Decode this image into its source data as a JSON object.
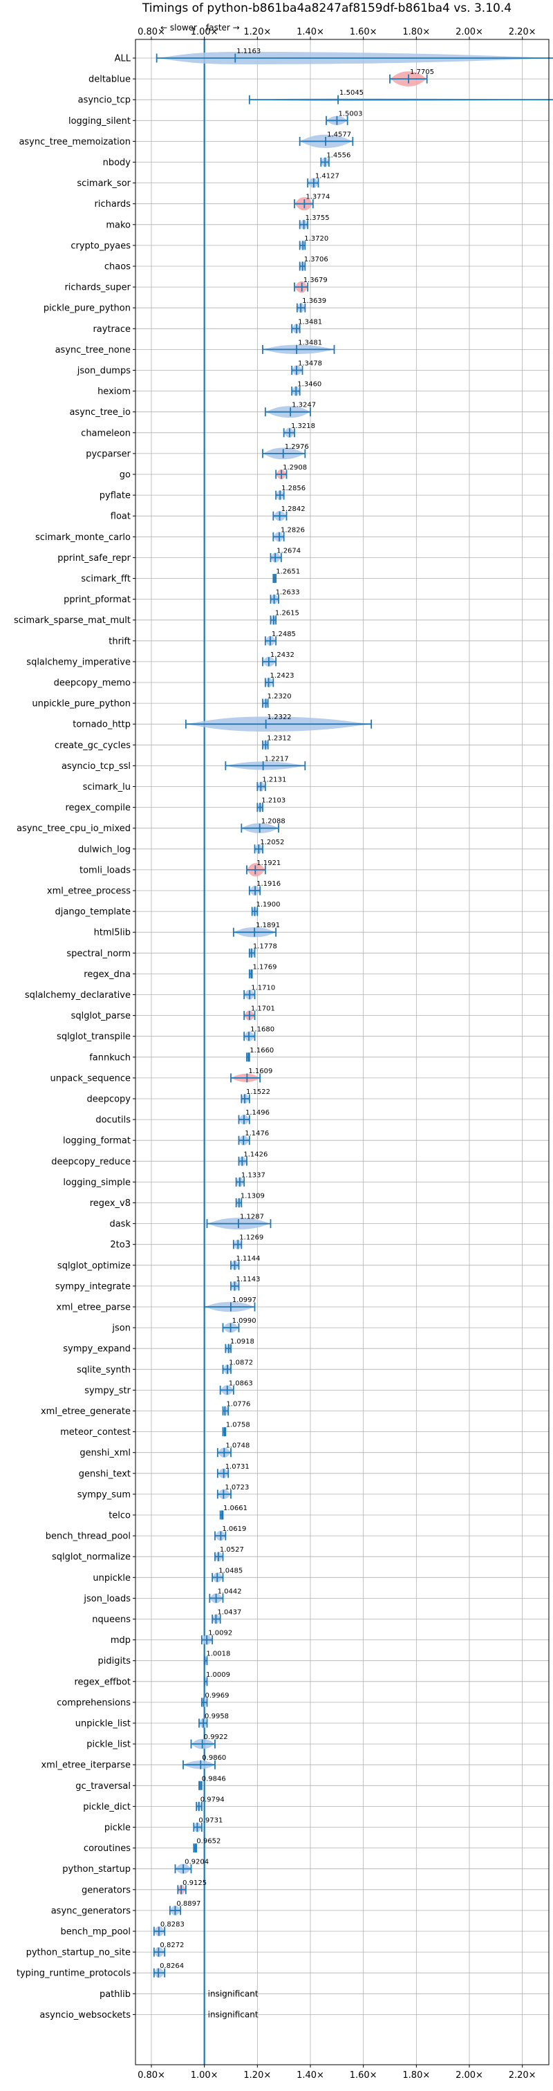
{
  "chart_data": {
    "type": "violin",
    "title": "Timings of python-b861ba4a8247af8159df-b861ba4 vs. 3.10.4",
    "direction_labels": {
      "slower": "← slower",
      "faster": "faster →"
    },
    "x_axis": {
      "ticks": [
        0.8,
        1.0,
        1.2,
        1.4,
        1.6,
        1.8,
        2.0,
        2.2
      ],
      "tick_labels": [
        "0.80×",
        "1.00×",
        "1.20×",
        "1.40×",
        "1.60×",
        "1.80×",
        "2.00×",
        "2.20×"
      ],
      "xlim": [
        0.74,
        2.3
      ],
      "reference_line": 1.0
    },
    "grid": true,
    "colors": {
      "violin": "#a9c6e8",
      "violin_edge": "#1f77b4",
      "error_bar": "#1f77b4",
      "significant": "#f4a3a8",
      "reference": "#1f77b4"
    },
    "benchmarks": [
      {
        "name": "ALL",
        "value": 1.1163,
        "label": "1.1163",
        "lo": 0.82,
        "hi": 2.34,
        "w": 0.75,
        "color": "blue"
      },
      {
        "name": "deltablue",
        "value": 1.7705,
        "label": "1.7705",
        "lo": 1.7,
        "hi": 1.84,
        "w": 0.9,
        "color": "red"
      },
      {
        "name": "asyncio_tcp",
        "value": 1.5045,
        "label": "1.5045",
        "lo": 1.17,
        "hi": 2.34,
        "w": 0.15,
        "color": "blue"
      },
      {
        "name": "logging_silent",
        "value": 1.5003,
        "label": "1.5003",
        "lo": 1.46,
        "hi": 1.54,
        "w": 0.55,
        "color": "blue"
      },
      {
        "name": "async_tree_memoization",
        "value": 1.4577,
        "label": "1.4577",
        "lo": 1.36,
        "hi": 1.56,
        "w": 0.8,
        "color": "blue"
      },
      {
        "name": "nbody",
        "value": 1.4556,
        "label": "1.4556",
        "lo": 1.44,
        "hi": 1.47,
        "w": 0.6,
        "color": "blue"
      },
      {
        "name": "scimark_sor",
        "value": 1.4127,
        "label": "1.4127",
        "lo": 1.39,
        "hi": 1.43,
        "w": 0.6,
        "color": "blue"
      },
      {
        "name": "richards",
        "value": 1.3774,
        "label": "1.3774",
        "lo": 1.34,
        "hi": 1.41,
        "w": 0.8,
        "color": "red"
      },
      {
        "name": "mako",
        "value": 1.3755,
        "label": "1.3755",
        "lo": 1.36,
        "hi": 1.39,
        "w": 0.6,
        "color": "blue"
      },
      {
        "name": "crypto_pyaes",
        "value": 1.372,
        "label": "1.3720",
        "lo": 1.36,
        "hi": 1.38,
        "w": 0.6,
        "color": "blue"
      },
      {
        "name": "chaos",
        "value": 1.3706,
        "label": "1.3706",
        "lo": 1.36,
        "hi": 1.38,
        "w": 0.6,
        "color": "blue"
      },
      {
        "name": "richards_super",
        "value": 1.3679,
        "label": "1.3679",
        "lo": 1.34,
        "hi": 1.39,
        "w": 0.7,
        "color": "red"
      },
      {
        "name": "pickle_pure_python",
        "value": 1.3639,
        "label": "1.3639",
        "lo": 1.35,
        "hi": 1.38,
        "w": 0.6,
        "color": "blue"
      },
      {
        "name": "raytrace",
        "value": 1.3481,
        "label": "1.3481",
        "lo": 1.33,
        "hi": 1.36,
        "w": 0.6,
        "color": "blue"
      },
      {
        "name": "async_tree_none",
        "value": 1.3481,
        "label": "1.3481",
        "lo": 1.22,
        "hi": 1.49,
        "w": 0.55,
        "color": "blue"
      },
      {
        "name": "json_dumps",
        "value": 1.3478,
        "label": "1.3478",
        "lo": 1.33,
        "hi": 1.37,
        "w": 0.6,
        "color": "blue"
      },
      {
        "name": "hexiom",
        "value": 1.346,
        "label": "1.3460",
        "lo": 1.33,
        "hi": 1.36,
        "w": 0.6,
        "color": "blue"
      },
      {
        "name": "async_tree_io",
        "value": 1.3247,
        "label": "1.3247",
        "lo": 1.23,
        "hi": 1.4,
        "w": 0.7,
        "color": "blue"
      },
      {
        "name": "chameleon",
        "value": 1.3218,
        "label": "1.3218",
        "lo": 1.3,
        "hi": 1.34,
        "w": 0.6,
        "color": "blue"
      },
      {
        "name": "pycparser",
        "value": 1.2976,
        "label": "1.2976",
        "lo": 1.22,
        "hi": 1.38,
        "w": 0.7,
        "color": "blue"
      },
      {
        "name": "go",
        "value": 1.2908,
        "label": "1.2908",
        "lo": 1.27,
        "hi": 1.31,
        "w": 0.6,
        "color": "red"
      },
      {
        "name": "pyflate",
        "value": 1.2856,
        "label": "1.2856",
        "lo": 1.27,
        "hi": 1.3,
        "w": 0.6,
        "color": "blue"
      },
      {
        "name": "float",
        "value": 1.2842,
        "label": "1.2842",
        "lo": 1.26,
        "hi": 1.31,
        "w": 0.6,
        "color": "blue"
      },
      {
        "name": "scimark_monte_carlo",
        "value": 1.2826,
        "label": "1.2826",
        "lo": 1.26,
        "hi": 1.3,
        "w": 0.6,
        "color": "blue"
      },
      {
        "name": "pprint_safe_repr",
        "value": 1.2674,
        "label": "1.2674",
        "lo": 1.25,
        "hi": 1.29,
        "w": 0.6,
        "color": "blue"
      },
      {
        "name": "scimark_fft",
        "value": 1.2651,
        "label": "1.2651",
        "lo": 1.26,
        "hi": 1.27,
        "w": 0.6,
        "color": "blue"
      },
      {
        "name": "pprint_pformat",
        "value": 1.2633,
        "label": "1.2633",
        "lo": 1.25,
        "hi": 1.28,
        "w": 0.6,
        "color": "blue"
      },
      {
        "name": "scimark_sparse_mat_mult",
        "value": 1.2615,
        "label": "1.2615",
        "lo": 1.25,
        "hi": 1.27,
        "w": 0.6,
        "color": "blue"
      },
      {
        "name": "thrift",
        "value": 1.2485,
        "label": "1.2485",
        "lo": 1.23,
        "hi": 1.27,
        "w": 0.6,
        "color": "blue"
      },
      {
        "name": "sqlalchemy_imperative",
        "value": 1.2432,
        "label": "1.2432",
        "lo": 1.22,
        "hi": 1.27,
        "w": 0.6,
        "color": "blue"
      },
      {
        "name": "deepcopy_memo",
        "value": 1.2423,
        "label": "1.2423",
        "lo": 1.23,
        "hi": 1.26,
        "w": 0.6,
        "color": "blue"
      },
      {
        "name": "unpickle_pure_python",
        "value": 1.232,
        "label": "1.2320",
        "lo": 1.22,
        "hi": 1.24,
        "w": 0.6,
        "color": "blue"
      },
      {
        "name": "tornado_http",
        "value": 1.2322,
        "label": "1.2322",
        "lo": 0.93,
        "hi": 1.63,
        "w": 0.9,
        "color": "blue"
      },
      {
        "name": "create_gc_cycles",
        "value": 1.2312,
        "label": "1.2312",
        "lo": 1.22,
        "hi": 1.24,
        "w": 0.6,
        "color": "blue"
      },
      {
        "name": "asyncio_tcp_ssl",
        "value": 1.2217,
        "label": "1.2217",
        "lo": 1.08,
        "hi": 1.38,
        "w": 0.5,
        "color": "blue"
      },
      {
        "name": "scimark_lu",
        "value": 1.2131,
        "label": "1.2131",
        "lo": 1.2,
        "hi": 1.23,
        "w": 0.6,
        "color": "blue"
      },
      {
        "name": "regex_compile",
        "value": 1.2103,
        "label": "1.2103",
        "lo": 1.2,
        "hi": 1.22,
        "w": 0.6,
        "color": "blue"
      },
      {
        "name": "async_tree_cpu_io_mixed",
        "value": 1.2088,
        "label": "1.2088",
        "lo": 1.14,
        "hi": 1.28,
        "w": 0.6,
        "color": "blue"
      },
      {
        "name": "dulwich_log",
        "value": 1.2052,
        "label": "1.2052",
        "lo": 1.19,
        "hi": 1.22,
        "w": 0.6,
        "color": "blue"
      },
      {
        "name": "tomli_loads",
        "value": 1.1921,
        "label": "1.1921",
        "lo": 1.16,
        "hi": 1.23,
        "w": 0.8,
        "color": "red"
      },
      {
        "name": "xml_etree_process",
        "value": 1.1916,
        "label": "1.1916",
        "lo": 1.17,
        "hi": 1.21,
        "w": 0.6,
        "color": "blue"
      },
      {
        "name": "django_template",
        "value": 1.19,
        "label": "1.1900",
        "lo": 1.18,
        "hi": 1.2,
        "w": 0.6,
        "color": "blue"
      },
      {
        "name": "html5lib",
        "value": 1.1891,
        "label": "1.1891",
        "lo": 1.11,
        "hi": 1.27,
        "w": 0.6,
        "color": "blue"
      },
      {
        "name": "spectral_norm",
        "value": 1.1778,
        "label": "1.1778",
        "lo": 1.17,
        "hi": 1.19,
        "w": 0.6,
        "color": "blue"
      },
      {
        "name": "regex_dna",
        "value": 1.1769,
        "label": "1.1769",
        "lo": 1.17,
        "hi": 1.18,
        "w": 0.6,
        "color": "blue"
      },
      {
        "name": "sqlalchemy_declarative",
        "value": 1.171,
        "label": "1.1710",
        "lo": 1.15,
        "hi": 1.19,
        "w": 0.6,
        "color": "blue"
      },
      {
        "name": "sqlglot_parse",
        "value": 1.1701,
        "label": "1.1701",
        "lo": 1.15,
        "hi": 1.19,
        "w": 0.6,
        "color": "red"
      },
      {
        "name": "sqlglot_transpile",
        "value": 1.168,
        "label": "1.1680",
        "lo": 1.15,
        "hi": 1.19,
        "w": 0.6,
        "color": "blue"
      },
      {
        "name": "fannkuch",
        "value": 1.166,
        "label": "1.1660",
        "lo": 1.16,
        "hi": 1.17,
        "w": 0.6,
        "color": "blue"
      },
      {
        "name": "unpack_sequence",
        "value": 1.1609,
        "label": "1.1609",
        "lo": 1.1,
        "hi": 1.21,
        "w": 0.5,
        "color": "red"
      },
      {
        "name": "deepcopy",
        "value": 1.1522,
        "label": "1.1522",
        "lo": 1.14,
        "hi": 1.17,
        "w": 0.6,
        "color": "blue"
      },
      {
        "name": "docutils",
        "value": 1.1496,
        "label": "1.1496",
        "lo": 1.13,
        "hi": 1.17,
        "w": 0.6,
        "color": "blue"
      },
      {
        "name": "logging_format",
        "value": 1.1476,
        "label": "1.1476",
        "lo": 1.13,
        "hi": 1.17,
        "w": 0.6,
        "color": "blue"
      },
      {
        "name": "deepcopy_reduce",
        "value": 1.1426,
        "label": "1.1426",
        "lo": 1.13,
        "hi": 1.16,
        "w": 0.6,
        "color": "blue"
      },
      {
        "name": "logging_simple",
        "value": 1.1337,
        "label": "1.1337",
        "lo": 1.12,
        "hi": 1.15,
        "w": 0.6,
        "color": "blue"
      },
      {
        "name": "regex_v8",
        "value": 1.1309,
        "label": "1.1309",
        "lo": 1.12,
        "hi": 1.14,
        "w": 0.6,
        "color": "blue"
      },
      {
        "name": "dask",
        "value": 1.1287,
        "label": "1.1287",
        "lo": 1.01,
        "hi": 1.25,
        "w": 0.7,
        "color": "blue"
      },
      {
        "name": "2to3",
        "value": 1.1269,
        "label": "1.1269",
        "lo": 1.11,
        "hi": 1.14,
        "w": 0.6,
        "color": "blue"
      },
      {
        "name": "sqlglot_optimize",
        "value": 1.1144,
        "label": "1.1144",
        "lo": 1.1,
        "hi": 1.13,
        "w": 0.6,
        "color": "blue"
      },
      {
        "name": "sympy_integrate",
        "value": 1.1143,
        "label": "1.1143",
        "lo": 1.1,
        "hi": 1.13,
        "w": 0.6,
        "color": "blue"
      },
      {
        "name": "xml_etree_parse",
        "value": 1.0997,
        "label": "1.0997",
        "lo": 1.0,
        "hi": 1.19,
        "w": 0.6,
        "color": "blue"
      },
      {
        "name": "json",
        "value": 1.099,
        "label": "1.0990",
        "lo": 1.07,
        "hi": 1.13,
        "w": 0.6,
        "color": "blue"
      },
      {
        "name": "sympy_expand",
        "value": 1.0918,
        "label": "1.0918",
        "lo": 1.08,
        "hi": 1.1,
        "w": 0.6,
        "color": "blue"
      },
      {
        "name": "sqlite_synth",
        "value": 1.0872,
        "label": "1.0872",
        "lo": 1.07,
        "hi": 1.1,
        "w": 0.6,
        "color": "blue"
      },
      {
        "name": "sympy_str",
        "value": 1.0863,
        "label": "1.0863",
        "lo": 1.06,
        "hi": 1.11,
        "w": 0.6,
        "color": "blue"
      },
      {
        "name": "xml_etree_generate",
        "value": 1.0776,
        "label": "1.0776",
        "lo": 1.07,
        "hi": 1.09,
        "w": 0.6,
        "color": "blue"
      },
      {
        "name": "meteor_contest",
        "value": 1.0758,
        "label": "1.0758",
        "lo": 1.07,
        "hi": 1.08,
        "w": 0.6,
        "color": "blue"
      },
      {
        "name": "genshi_xml",
        "value": 1.0748,
        "label": "1.0748",
        "lo": 1.05,
        "hi": 1.1,
        "w": 0.6,
        "color": "blue"
      },
      {
        "name": "genshi_text",
        "value": 1.0731,
        "label": "1.0731",
        "lo": 1.05,
        "hi": 1.09,
        "w": 0.6,
        "color": "blue"
      },
      {
        "name": "sympy_sum",
        "value": 1.0723,
        "label": "1.0723",
        "lo": 1.05,
        "hi": 1.1,
        "w": 0.6,
        "color": "blue"
      },
      {
        "name": "telco",
        "value": 1.0661,
        "label": "1.0661",
        "lo": 1.06,
        "hi": 1.07,
        "w": 0.6,
        "color": "blue"
      },
      {
        "name": "bench_thread_pool",
        "value": 1.0619,
        "label": "1.0619",
        "lo": 1.04,
        "hi": 1.08,
        "w": 0.6,
        "color": "blue"
      },
      {
        "name": "sqlglot_normalize",
        "value": 1.0527,
        "label": "1.0527",
        "lo": 1.04,
        "hi": 1.07,
        "w": 0.6,
        "color": "blue"
      },
      {
        "name": "unpickle",
        "value": 1.0485,
        "label": "1.0485",
        "lo": 1.03,
        "hi": 1.07,
        "w": 0.6,
        "color": "blue"
      },
      {
        "name": "json_loads",
        "value": 1.0442,
        "label": "1.0442",
        "lo": 1.02,
        "hi": 1.07,
        "w": 0.6,
        "color": "blue"
      },
      {
        "name": "nqueens",
        "value": 1.0437,
        "label": "1.0437",
        "lo": 1.03,
        "hi": 1.06,
        "w": 0.6,
        "color": "blue"
      },
      {
        "name": "mdp",
        "value": 1.0092,
        "label": "1.0092",
        "lo": 0.99,
        "hi": 1.03,
        "w": 0.6,
        "color": "blue"
      },
      {
        "name": "pidigits",
        "value": 1.0018,
        "label": "1.0018",
        "lo": 1.0,
        "hi": 1.01,
        "w": 0.5,
        "color": "blue"
      },
      {
        "name": "regex_effbot",
        "value": 1.0009,
        "label": "1.0009",
        "lo": 1.0,
        "hi": 1.01,
        "w": 0.5,
        "color": "blue"
      },
      {
        "name": "comprehensions",
        "value": 0.9969,
        "label": "0.9969",
        "lo": 0.99,
        "hi": 1.01,
        "w": 0.6,
        "color": "blue"
      },
      {
        "name": "unpickle_list",
        "value": 0.9958,
        "label": "0.9958",
        "lo": 0.98,
        "hi": 1.01,
        "w": 0.6,
        "color": "blue"
      },
      {
        "name": "pickle_list",
        "value": 0.9922,
        "label": "0.9922",
        "lo": 0.95,
        "hi": 1.04,
        "w": 0.6,
        "color": "blue"
      },
      {
        "name": "xml_etree_iterparse",
        "value": 0.986,
        "label": "0.9860",
        "lo": 0.92,
        "hi": 1.04,
        "w": 0.5,
        "color": "blue"
      },
      {
        "name": "gc_traversal",
        "value": 0.9846,
        "label": "0.9846",
        "lo": 0.98,
        "hi": 0.99,
        "w": 0.6,
        "color": "blue"
      },
      {
        "name": "pickle_dict",
        "value": 0.9794,
        "label": "0.9794",
        "lo": 0.97,
        "hi": 0.99,
        "w": 0.6,
        "color": "blue"
      },
      {
        "name": "pickle",
        "value": 0.9731,
        "label": "0.9731",
        "lo": 0.96,
        "hi": 0.99,
        "w": 0.6,
        "color": "blue"
      },
      {
        "name": "coroutines",
        "value": 0.9652,
        "label": "0.9652",
        "lo": 0.96,
        "hi": 0.97,
        "w": 0.5,
        "color": "blue"
      },
      {
        "name": "python_startup",
        "value": 0.9204,
        "label": "0.9204",
        "lo": 0.89,
        "hi": 0.95,
        "w": 0.6,
        "color": "blue"
      },
      {
        "name": "generators",
        "value": 0.9125,
        "label": "0.9125",
        "lo": 0.9,
        "hi": 0.93,
        "w": 0.6,
        "color": "red"
      },
      {
        "name": "async_generators",
        "value": 0.8897,
        "label": "0.8897",
        "lo": 0.87,
        "hi": 0.91,
        "w": 0.6,
        "color": "blue"
      },
      {
        "name": "bench_mp_pool",
        "value": 0.8283,
        "label": "0.8283",
        "lo": 0.81,
        "hi": 0.85,
        "w": 0.6,
        "color": "blue"
      },
      {
        "name": "python_startup_no_site",
        "value": 0.8272,
        "label": "0.8272",
        "lo": 0.81,
        "hi": 0.85,
        "w": 0.6,
        "color": "blue"
      },
      {
        "name": "typing_runtime_protocols",
        "value": 0.8264,
        "label": "0.8264",
        "lo": 0.81,
        "hi": 0.85,
        "w": 0.6,
        "color": "blue"
      },
      {
        "name": "pathlib",
        "value": null,
        "label": "insignificant",
        "color": "none"
      },
      {
        "name": "asyncio_websockets",
        "value": null,
        "label": "insignificant",
        "color": "none"
      }
    ]
  }
}
